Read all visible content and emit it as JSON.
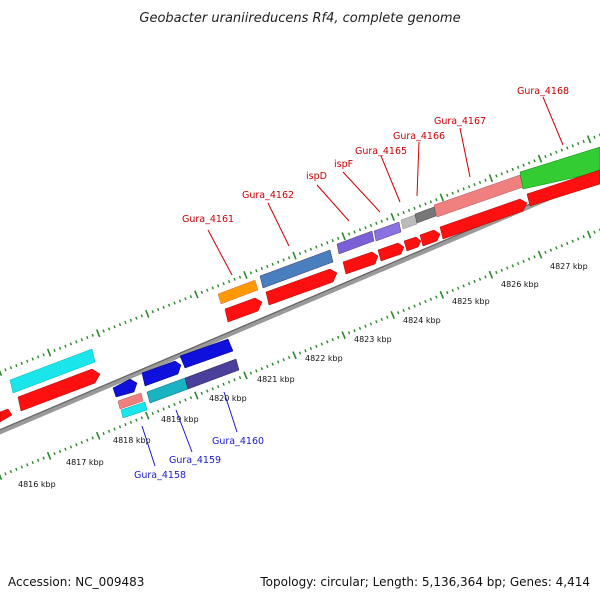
{
  "title": "Geobacter uraniireducens Rf4, complete genome",
  "footer": {
    "accession": "Accession: NC_009483",
    "summary": "Topology: circular; Length: 5,136,364 bp; Genes: 4,414"
  },
  "colors": {
    "backbone": "#8a8a8a",
    "tick": "#2a8a2a",
    "label_red": "#cc0000",
    "label_blue": "#1a1acc",
    "cds": "#ff0000",
    "cds_dark": "#cc0000"
  },
  "scale": {
    "ticks": [
      {
        "label": "4816 kbp"
      },
      {
        "label": "4817 kbp"
      },
      {
        "label": "4818 kbp"
      },
      {
        "label": "4819 kbp"
      },
      {
        "label": "4820 kbp"
      },
      {
        "label": "4821 kbp"
      },
      {
        "label": "4822 kbp"
      },
      {
        "label": "4823 kbp"
      },
      {
        "label": "4824 kbp"
      },
      {
        "label": "4825 kbp"
      },
      {
        "label": "4826 kbp"
      },
      {
        "label": "4827 kbp"
      }
    ]
  },
  "genes": [
    {
      "label": "Gura_4158",
      "color": "blue"
    },
    {
      "label": "Gura_4159",
      "color": "blue"
    },
    {
      "label": "Gura_4160",
      "color": "blue"
    },
    {
      "label": "Gura_4161",
      "color": "red"
    },
    {
      "label": "Gura_4162",
      "color": "red"
    },
    {
      "label": "ispD",
      "color": "red"
    },
    {
      "label": "ispF",
      "color": "red"
    },
    {
      "label": "Gura_4165",
      "color": "red"
    },
    {
      "label": "Gura_4166",
      "color": "red"
    },
    {
      "label": "Gura_4167",
      "color": "red"
    },
    {
      "label": "Gura_4168",
      "color": "red"
    }
  ]
}
